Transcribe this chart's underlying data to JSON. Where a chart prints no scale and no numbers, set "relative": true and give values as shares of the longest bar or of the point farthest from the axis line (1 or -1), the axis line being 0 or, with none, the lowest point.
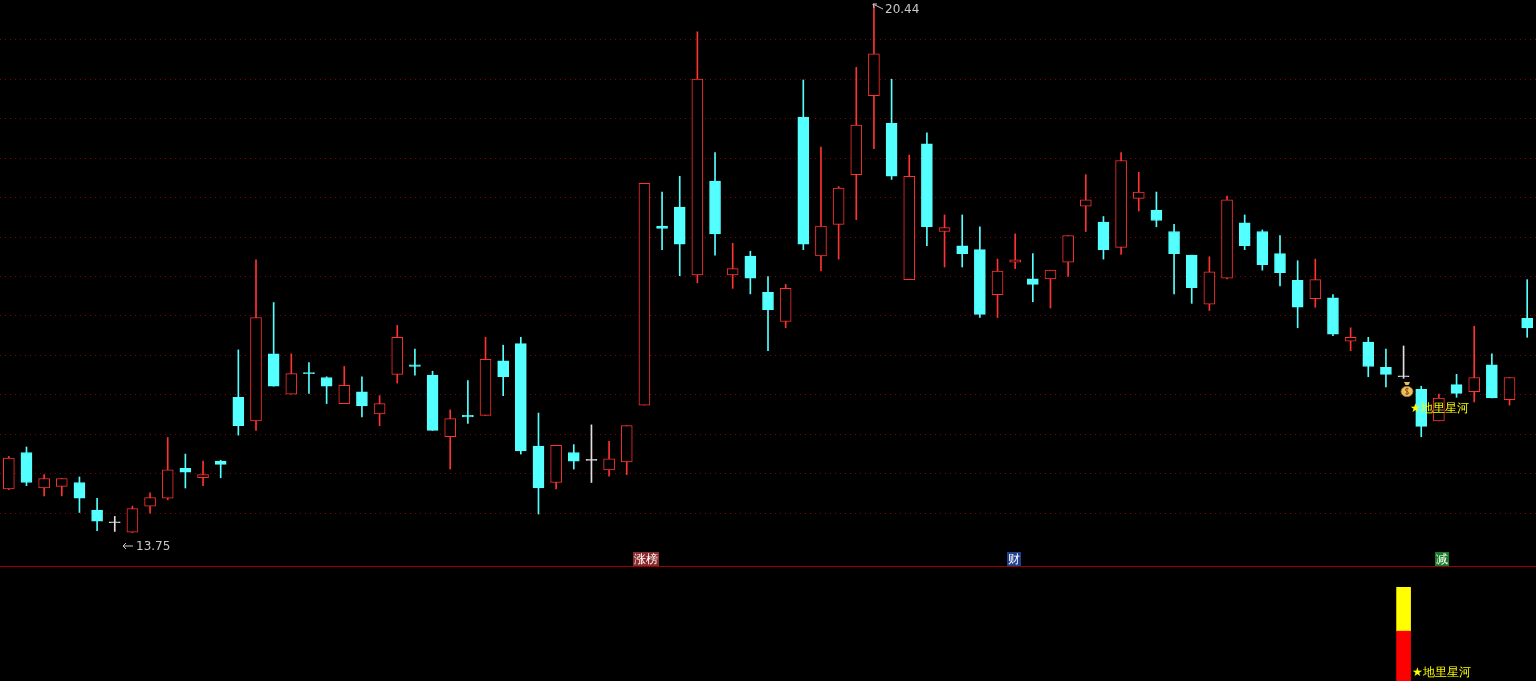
{
  "chart_data": [
    {
      "type": "candlestick",
      "categories": [
        null,
        null,
        null,
        null,
        null,
        null,
        null,
        null,
        null,
        null,
        null,
        null,
        null,
        null,
        null,
        null,
        null,
        null,
        null,
        null,
        null,
        null,
        null,
        null,
        null,
        null,
        null,
        null,
        null,
        null,
        null,
        null,
        null,
        null,
        null,
        null,
        null,
        null,
        null,
        null,
        null,
        null,
        null,
        null,
        null,
        null,
        null,
        null,
        null,
        null,
        null,
        null,
        null,
        null,
        null,
        null,
        null,
        null,
        null,
        null,
        null,
        null,
        null,
        null,
        null,
        null,
        null,
        null,
        null,
        null,
        null,
        null,
        null,
        null,
        null,
        null,
        null,
        null,
        null,
        null,
        null,
        null,
        null,
        null,
        null,
        null,
        null
      ],
      "ohlc": [
        [
          14.31,
          14.72,
          14.3,
          14.7
        ],
        [
          14.77,
          14.84,
          14.35,
          14.39
        ],
        [
          14.32,
          14.49,
          14.22,
          14.44
        ],
        [
          14.34,
          14.44,
          14.22,
          14.44
        ],
        [
          14.39,
          14.46,
          14.01,
          14.19
        ],
        [
          14.04,
          14.19,
          13.78,
          13.9
        ],
        [
          13.88,
          13.96,
          13.77,
          13.88
        ],
        [
          13.76,
          14.09,
          13.75,
          14.06
        ],
        [
          14.09,
          14.26,
          14.0,
          14.2
        ],
        [
          14.19,
          14.96,
          14.17,
          14.55
        ],
        [
          14.57,
          14.75,
          14.32,
          14.52
        ],
        [
          14.45,
          14.66,
          14.35,
          14.49
        ],
        [
          14.66,
          14.67,
          14.45,
          14.62
        ],
        [
          15.47,
          16.07,
          14.99,
          15.11
        ],
        [
          15.17,
          17.21,
          15.05,
          16.48
        ],
        [
          16.02,
          16.67,
          15.61,
          15.61
        ],
        [
          15.51,
          16.02,
          15.51,
          15.77
        ],
        [
          15.78,
          15.91,
          15.52,
          15.77
        ],
        [
          15.72,
          15.73,
          15.39,
          15.61
        ],
        [
          15.39,
          15.86,
          15.39,
          15.62
        ],
        [
          15.54,
          15.73,
          15.22,
          15.36
        ],
        [
          15.26,
          15.49,
          15.11,
          15.39
        ],
        [
          15.76,
          16.38,
          15.65,
          16.23
        ],
        [
          15.88,
          16.08,
          15.75,
          15.86
        ],
        [
          15.75,
          15.8,
          15.05,
          15.05
        ],
        [
          14.97,
          15.31,
          14.56,
          15.2
        ],
        [
          15.24,
          15.68,
          15.14,
          15.22
        ],
        [
          15.24,
          16.23,
          15.24,
          15.95
        ],
        [
          15.93,
          16.13,
          15.49,
          15.73
        ],
        [
          16.15,
          16.23,
          14.75,
          14.79
        ],
        [
          14.85,
          15.27,
          13.99,
          14.32
        ],
        [
          14.39,
          14.86,
          14.31,
          14.86
        ],
        [
          14.77,
          14.87,
          14.56,
          14.66
        ],
        [
          14.67,
          15.12,
          14.39,
          14.67
        ],
        [
          14.55,
          14.91,
          14.47,
          14.69
        ],
        [
          14.65,
          15.11,
          14.49,
          15.11
        ],
        [
          15.37,
          18.18,
          15.37,
          18.18
        ],
        [
          17.64,
          18.07,
          17.34,
          17.61
        ],
        [
          17.88,
          18.27,
          17.01,
          17.41
        ],
        [
          17.02,
          20.1,
          16.92,
          19.5
        ],
        [
          18.21,
          18.57,
          17.27,
          17.54
        ],
        [
          17.02,
          17.42,
          16.85,
          17.1
        ],
        [
          17.26,
          17.32,
          16.78,
          16.98
        ],
        [
          16.8,
          17.0,
          16.06,
          16.58
        ],
        [
          16.43,
          16.9,
          16.35,
          16.85
        ],
        [
          19.02,
          19.49,
          17.34,
          17.41
        ],
        [
          17.26,
          18.64,
          17.07,
          17.64
        ],
        [
          17.66,
          18.14,
          17.22,
          18.12
        ],
        [
          18.29,
          19.65,
          17.72,
          18.92
        ],
        [
          19.29,
          20.44,
          18.62,
          19.82
        ],
        [
          18.94,
          19.5,
          18.23,
          18.27
        ],
        [
          16.96,
          18.54,
          16.96,
          18.27
        ],
        [
          18.68,
          18.82,
          17.39,
          17.63
        ],
        [
          17.57,
          17.78,
          17.12,
          17.62
        ],
        [
          17.39,
          17.78,
          17.12,
          17.29
        ],
        [
          17.34,
          17.63,
          16.48,
          16.52
        ],
        [
          16.77,
          17.22,
          16.48,
          17.07
        ],
        [
          17.18,
          17.54,
          17.1,
          17.21
        ],
        [
          16.97,
          17.29,
          16.68,
          16.9
        ],
        [
          16.97,
          17.08,
          16.6,
          17.08
        ],
        [
          17.18,
          17.52,
          17.0,
          17.52
        ],
        [
          17.89,
          18.29,
          17.57,
          17.97
        ],
        [
          17.69,
          17.76,
          17.22,
          17.34
        ],
        [
          17.37,
          18.57,
          17.28,
          18.47
        ],
        [
          17.99,
          18.32,
          17.83,
          18.07
        ],
        [
          17.84,
          18.07,
          17.63,
          17.71
        ],
        [
          17.57,
          17.66,
          16.78,
          17.29
        ],
        [
          17.27,
          17.27,
          16.66,
          16.86
        ],
        [
          16.65,
          17.25,
          16.57,
          17.06
        ],
        [
          16.98,
          18.02,
          16.97,
          17.97
        ],
        [
          17.68,
          17.78,
          17.34,
          17.39
        ],
        [
          17.57,
          17.59,
          17.08,
          17.15
        ],
        [
          17.29,
          17.52,
          16.88,
          17.05
        ],
        [
          16.95,
          17.2,
          16.35,
          16.61
        ],
        [
          16.72,
          17.22,
          16.61,
          16.96
        ],
        [
          16.73,
          16.77,
          16.25,
          16.27
        ],
        [
          16.18,
          16.35,
          16.06,
          16.23
        ],
        [
          16.17,
          16.23,
          15.73,
          15.86
        ],
        [
          15.85,
          16.08,
          15.6,
          15.76
        ],
        [
          15.73,
          16.12,
          15.71,
          15.73
        ],
        [
          15.57,
          15.61,
          14.97,
          15.1
        ],
        [
          15.17,
          15.51,
          15.17,
          15.46
        ],
        [
          15.63,
          15.76,
          15.47,
          15.52
        ],
        [
          15.54,
          16.37,
          15.41,
          15.72
        ],
        [
          15.88,
          16.02,
          15.46,
          15.46
        ],
        [
          15.44,
          15.72,
          15.37,
          15.72
        ],
        [
          16.47,
          16.96,
          16.23,
          16.35
        ]
      ],
      "colors": [
        "#ff3232",
        "#54ffff",
        "#ff3232",
        "#ff3232",
        "#54ffff",
        "#54ffff",
        "#e0e0e0",
        "#ff3232",
        "#ff3232",
        "#ff3232",
        "#54ffff",
        "#ff3232",
        "#54ffff",
        "#54ffff",
        "#ff3232",
        "#54ffff",
        "#ff3232",
        "#54ffff",
        "#54ffff",
        "#ff3232",
        "#54ffff",
        "#ff3232",
        "#ff3232",
        "#54ffff",
        "#54ffff",
        "#ff3232",
        "#54ffff",
        "#ff3232",
        "#54ffff",
        "#54ffff",
        "#54ffff",
        "#ff3232",
        "#54ffff",
        "#e0e0e0",
        "#ff3232",
        "#ff3232",
        "#ff3232",
        "#54ffff",
        "#54ffff",
        "#ff3232",
        "#54ffff",
        "#ff3232",
        "#54ffff",
        "#54ffff",
        "#ff3232",
        "#54ffff",
        "#ff3232",
        "#ff3232",
        "#ff3232",
        "#ff3232",
        "#54ffff",
        "#ff3232",
        "#54ffff",
        "#ff3232",
        "#54ffff",
        "#54ffff",
        "#ff3232",
        "#ff3232",
        "#54ffff",
        "#ff3232",
        "#ff3232",
        "#ff3232",
        "#54ffff",
        "#ff3232",
        "#ff3232",
        "#54ffff",
        "#54ffff",
        "#54ffff",
        "#ff3232",
        "#ff3232",
        "#54ffff",
        "#54ffff",
        "#54ffff",
        "#54ffff",
        "#ff3232",
        "#54ffff",
        "#ff3232",
        "#54ffff",
        "#54ffff",
        "#e0e0e0",
        "#54ffff",
        "#ff3232",
        "#54ffff",
        "#ff3232",
        "#54ffff",
        "#ff3232",
        "#54ffff"
      ],
      "grid": "y",
      "yticks": [
        {
          "value": 20,
          "label": null
        },
        {
          "value": 19.5,
          "label": null
        },
        {
          "value": 19,
          "label": null
        },
        {
          "value": 18.5,
          "label": null
        },
        {
          "value": 18,
          "label": null
        },
        {
          "value": 17.5,
          "label": null
        },
        {
          "value": 17,
          "label": null
        },
        {
          "value": 16.5,
          "label": null
        },
        {
          "value": 16,
          "label": null
        },
        {
          "value": 15.5,
          "label": null
        },
        {
          "value": 15,
          "label": null
        },
        {
          "value": 14.5,
          "label": null
        },
        {
          "value": 14,
          "label": null
        }
      ],
      "tick_labels": false,
      "legend": false,
      "annotations": [
        "20.44",
        "13.75",
        "涨榜",
        "财",
        "减",
        "★地里星河"
      ]
    },
    {
      "type": "bar",
      "stacked": true,
      "relative": true,
      "legend": false,
      "tick_labels": false,
      "categories": [
        null,
        null,
        null,
        null,
        null,
        null,
        null,
        null,
        null,
        null,
        null,
        null,
        null,
        null,
        null,
        null,
        null,
        null,
        null,
        null,
        null,
        null,
        null,
        null,
        null,
        null,
        null,
        null,
        null,
        null,
        null,
        null,
        null,
        null,
        null,
        null,
        null,
        null,
        null,
        null,
        null,
        null,
        null,
        null,
        null,
        null,
        null,
        null,
        null,
        null,
        null,
        null,
        null,
        null,
        null,
        null,
        null,
        null,
        null,
        null,
        null,
        null,
        null,
        null,
        null,
        null,
        null,
        null,
        null,
        null,
        null,
        null,
        null,
        null,
        null,
        null,
        null,
        null,
        null,
        null,
        null,
        null,
        null,
        null,
        null,
        null,
        null
      ],
      "series": [
        {
          "color": "#ff0000",
          "values": [
            null,
            null,
            null,
            null,
            null,
            null,
            null,
            null,
            null,
            null,
            null,
            null,
            null,
            null,
            null,
            null,
            null,
            null,
            null,
            null,
            null,
            null,
            null,
            null,
            null,
            null,
            null,
            null,
            null,
            null,
            null,
            null,
            null,
            null,
            null,
            null,
            null,
            null,
            null,
            null,
            null,
            null,
            null,
            null,
            null,
            null,
            null,
            null,
            null,
            null,
            null,
            null,
            null,
            null,
            null,
            null,
            null,
            null,
            null,
            null,
            null,
            null,
            null,
            null,
            null,
            null,
            null,
            null,
            null,
            null,
            null,
            null,
            null,
            null,
            null,
            null,
            null,
            null,
            null,
            0.53,
            null,
            null,
            null,
            null,
            null,
            null,
            null
          ]
        },
        {
          "color": "#ffff00",
          "values": [
            null,
            null,
            null,
            null,
            null,
            null,
            null,
            null,
            null,
            null,
            null,
            null,
            null,
            null,
            null,
            null,
            null,
            null,
            null,
            null,
            null,
            null,
            null,
            null,
            null,
            null,
            null,
            null,
            null,
            null,
            null,
            null,
            null,
            null,
            null,
            null,
            null,
            null,
            null,
            null,
            null,
            null,
            null,
            null,
            null,
            null,
            null,
            null,
            null,
            null,
            null,
            null,
            null,
            null,
            null,
            null,
            null,
            null,
            null,
            null,
            null,
            null,
            null,
            null,
            null,
            null,
            null,
            null,
            null,
            null,
            null,
            null,
            null,
            null,
            null,
            null,
            null,
            null,
            null,
            0.47,
            null,
            null,
            null,
            null,
            null,
            null,
            null
          ]
        }
      ],
      "annotations": [
        "★地里星河"
      ]
    }
  ]
}
